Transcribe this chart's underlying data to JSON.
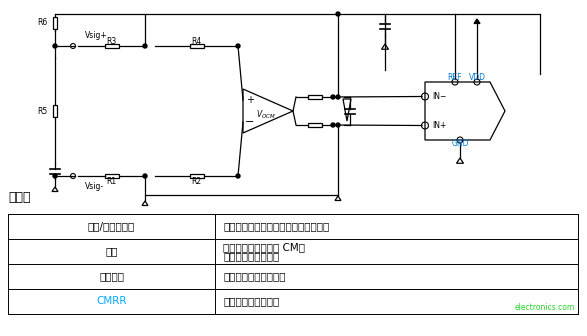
{
  "background_color": "#ffffff",
  "table_header": "利与弊",
  "table_rows": [
    [
      "裕量/单电源供电",
      "适合单电源供电，因为采用反相配置。"
    ],
    [
      "增益",
      "允许衰减增益和可变 CM。\n轻松设置输出共模。"
    ],
    [
      "输入阻抗",
      "取决于所用的输入电阻"
    ],
    [
      "CMRR",
      "良好的共模抑制性能"
    ]
  ],
  "cmrr_color": "#00aaff",
  "text_color": "#000000",
  "watermark": "electronics.com",
  "watermark_color": "#00cc00",
  "ref_color": "#00aaff",
  "vdd_color": "#00aaff",
  "gnd_color": "#00aaff"
}
